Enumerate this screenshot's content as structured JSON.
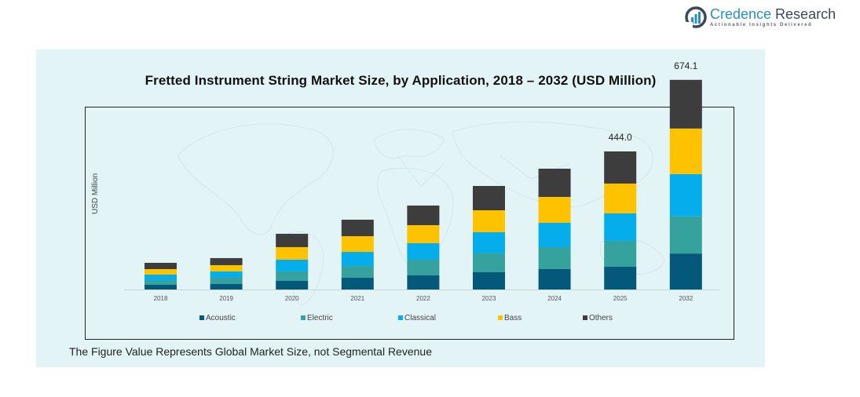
{
  "logo": {
    "name_part1": "Credence",
    "name_part2": " Research",
    "tagline": "Actionable Insights Delivered"
  },
  "footnote": "The Figure Value Represents Global Market Size, not Segmental Revenue",
  "colors": {
    "Acoustic": "#04587a",
    "Electric": "#35a29e",
    "Classical": "#05aeea",
    "Bass": "#fdc300",
    "Others": "#3d3d3d",
    "panel_bg": "#e3f4f6",
    "logo_blue": "#2a8fbf"
  },
  "chart_data": {
    "type": "bar",
    "stacked": true,
    "title": "Fretted Instrument String Market Size, by Application, 2018 – 2032 (USD Million)",
    "xlabel": "",
    "ylabel": "USD Million",
    "categories": [
      "2018",
      "2019",
      "2020",
      "2021",
      "2022",
      "2023",
      "2024",
      "2025",
      "2032"
    ],
    "series": [
      {
        "name": "Acoustic",
        "values": [
          15.1,
          17.7,
          27.8,
          37.8,
          45.4,
          55.5,
          65.6,
          73.2,
          115.8
        ]
      },
      {
        "name": "Electric",
        "values": [
          15.1,
          20.2,
          30.3,
          37.8,
          50.5,
          60.6,
          70.6,
          83.3,
          119.2
        ]
      },
      {
        "name": "Classical",
        "values": [
          17.7,
          20.2,
          37.8,
          45.4,
          53.0,
          68.1,
          78.2,
          88.3,
          136.2
        ]
      },
      {
        "name": "Bass",
        "values": [
          17.7,
          20.2,
          40.4,
          50.5,
          58.0,
          70.6,
          83.3,
          95.9,
          146.4
        ]
      },
      {
        "name": "Others",
        "values": [
          20.2,
          22.7,
          42.9,
          53.0,
          63.1,
          78.2,
          90.8,
          103.3,
          156.5
        ]
      }
    ],
    "totals_labels": {
      "2025": "444.0",
      "2032": "674.1"
    },
    "legend": [
      "Acoustic",
      "Electric",
      "Classical",
      "Bass",
      "Others"
    ],
    "legend_position": "bottom",
    "grid": false
  }
}
